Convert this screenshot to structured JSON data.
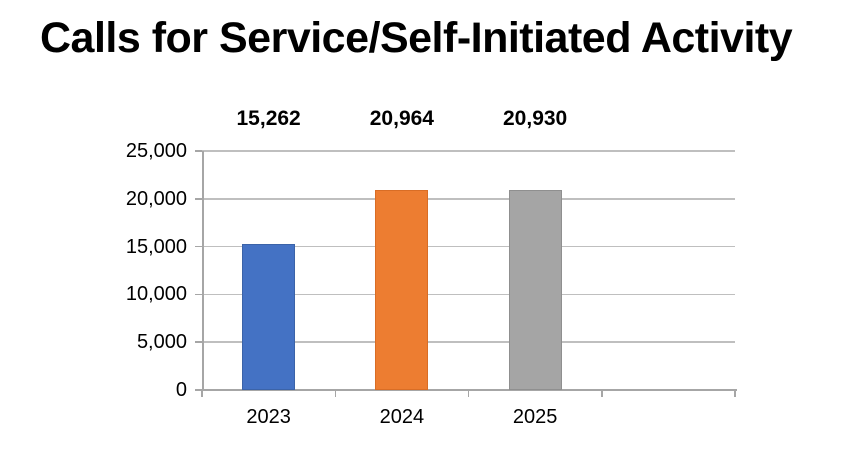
{
  "page": {
    "background": "#FFFFFF"
  },
  "chart_data": {
    "type": "bar",
    "title": "Calls for Service/Self-Initiated Activity",
    "categories": [
      "2023",
      "2024",
      "2025"
    ],
    "values": [
      15262,
      20964,
      20930
    ],
    "value_labels": [
      "15,262",
      "20,964",
      "20,930"
    ],
    "series_colors": [
      "#4472C4",
      "#ED7D31",
      "#A5A5A5"
    ],
    "series_border_colors": [
      "#3B63A8",
      "#D96D25",
      "#8F8F8F"
    ],
    "xlabel": "",
    "ylabel": "",
    "ylim": [
      0,
      25000
    ],
    "ytick_step": 5000,
    "yticks": [
      0,
      5000,
      10000,
      15000,
      20000,
      25000
    ],
    "ytick_labels": [
      "0",
      "5,000",
      "10,000",
      "15,000",
      "20,000",
      "25,000"
    ],
    "category_slots": 4,
    "grid": true,
    "legend": false,
    "colors": {
      "gridline": "#BFBFBF",
      "axis": "#A6A6A6",
      "text": "#000000",
      "title": "#000000"
    }
  }
}
